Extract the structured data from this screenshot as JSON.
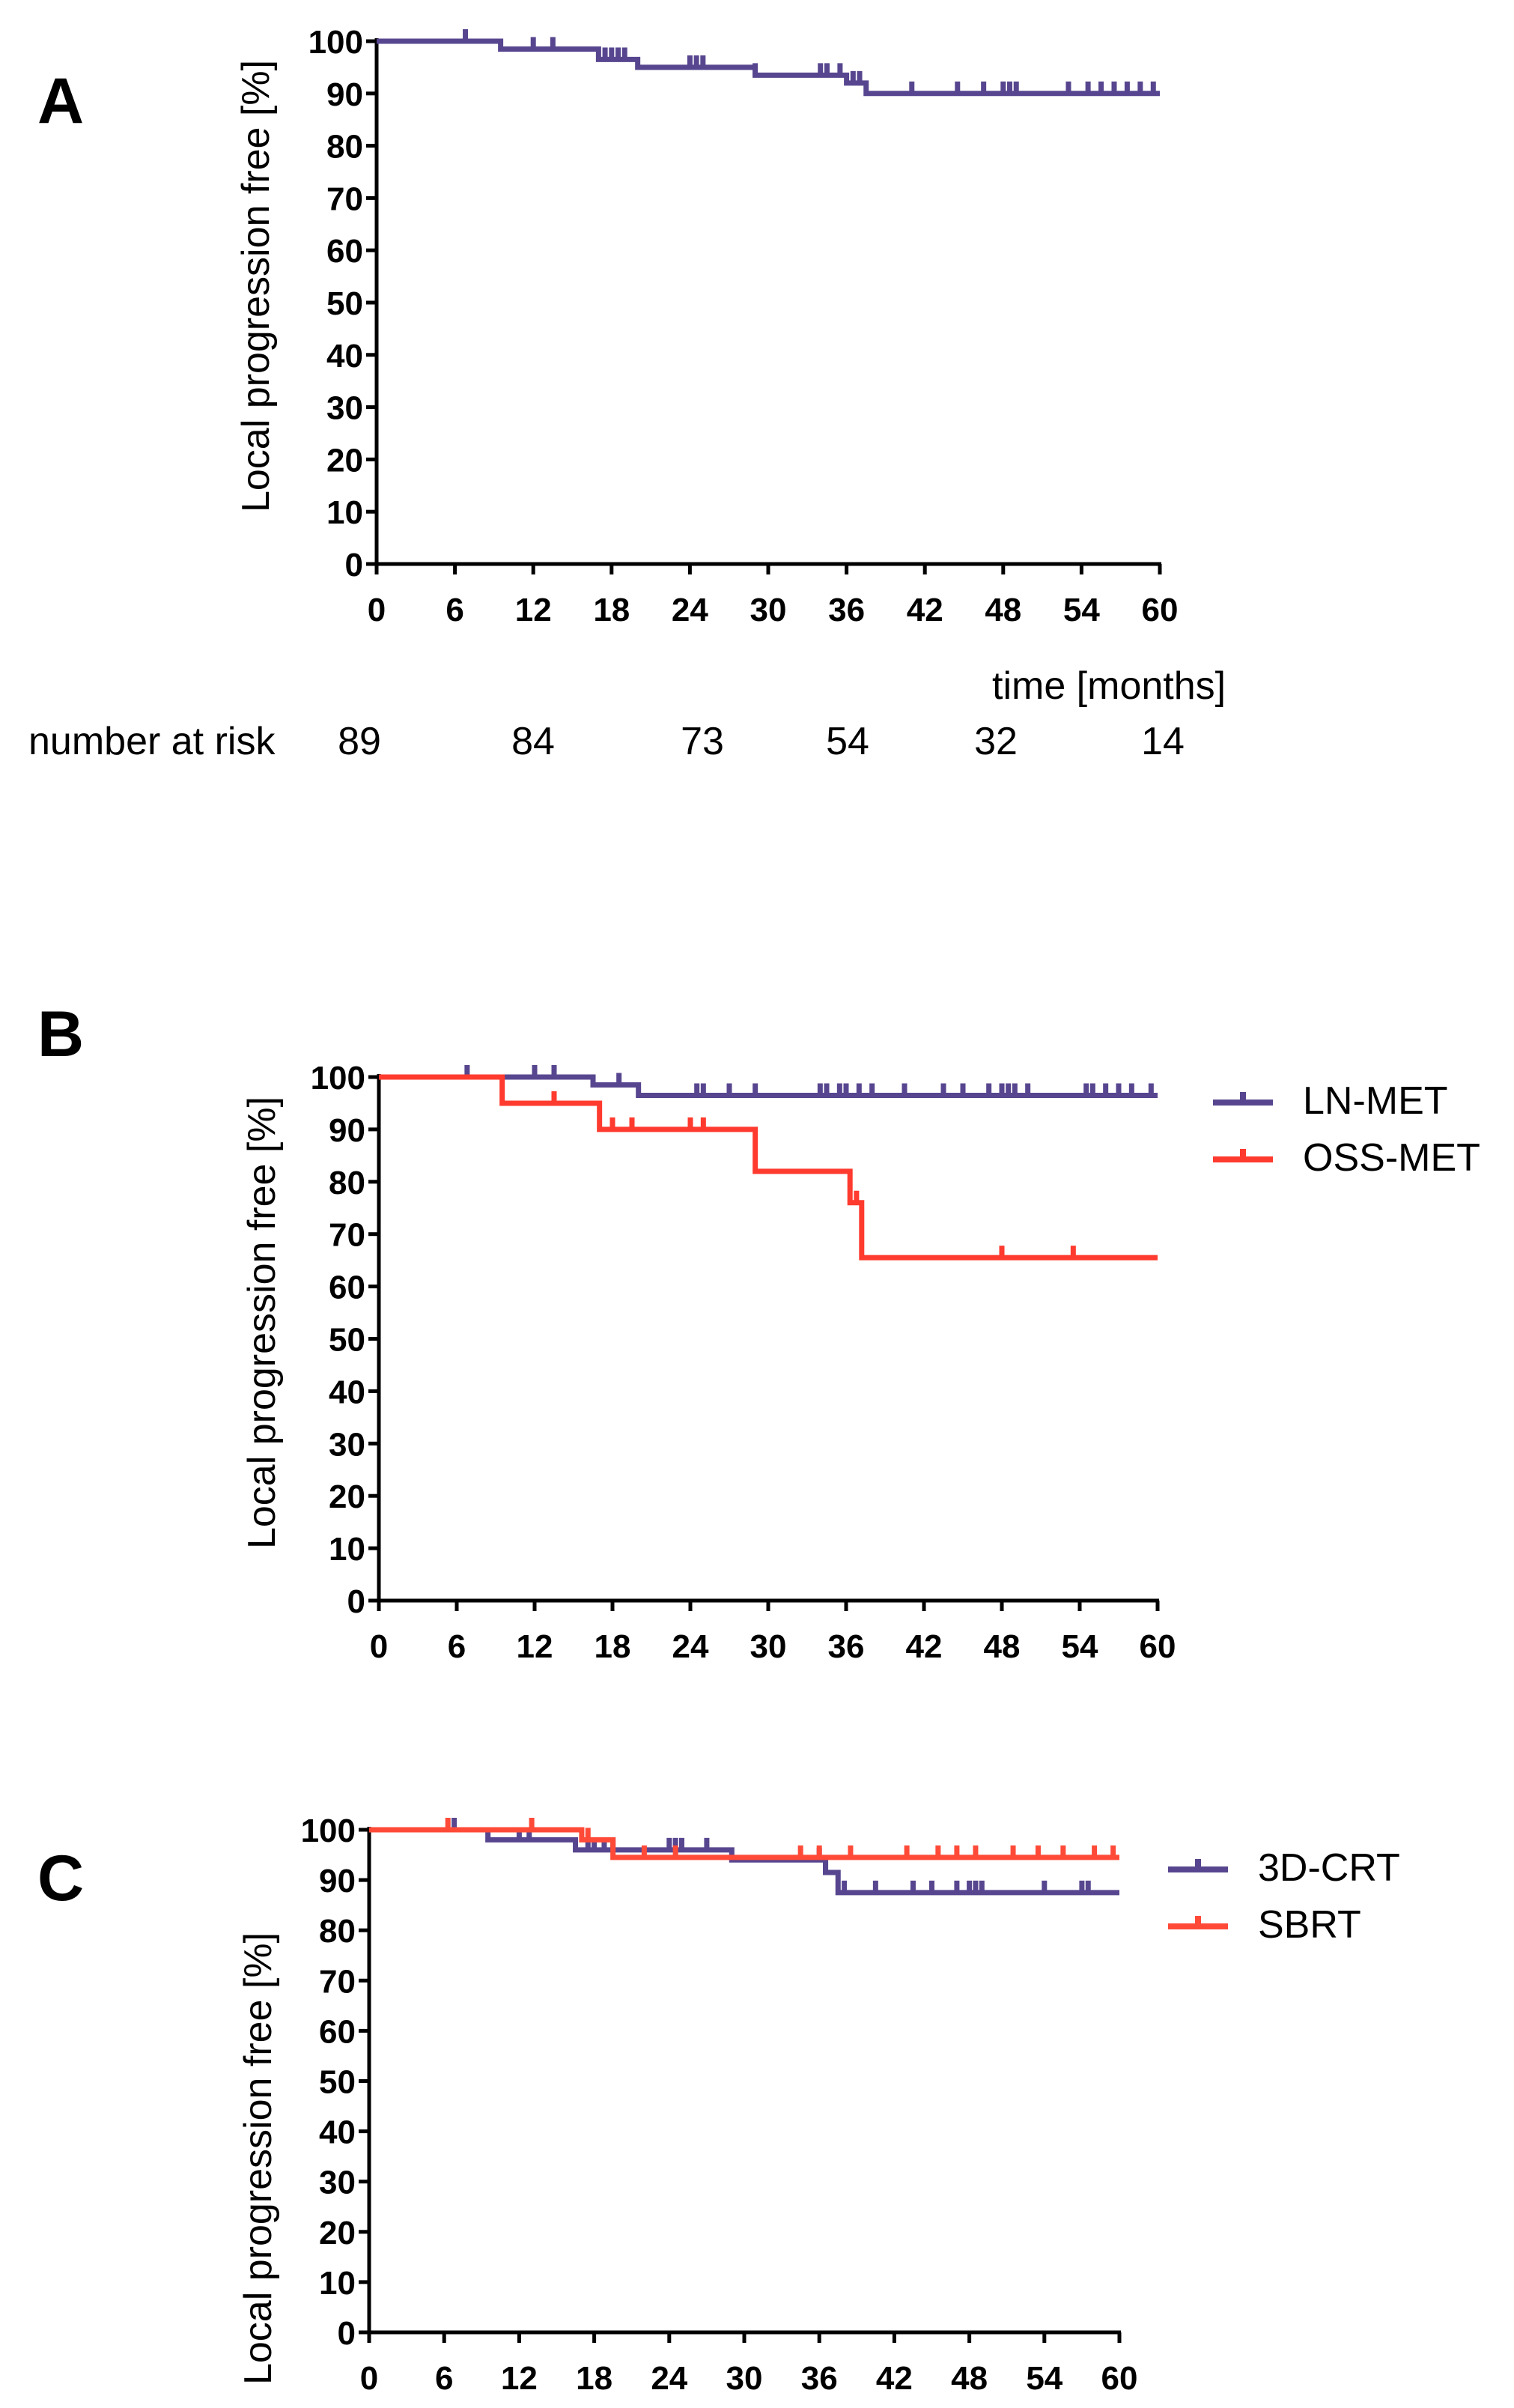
{
  "colors": {
    "purple": "#57468f",
    "red": "#ff3a2e",
    "orange_red": "#ff4a38",
    "axis": "#000000"
  },
  "chart_data": [
    {
      "type": "line",
      "panel": "A",
      "ylabel": "Local progression free [%]",
      "xlabel": "time [months]",
      "xlim": [
        0,
        60
      ],
      "ylim": [
        0,
        100
      ],
      "xticks": [
        0,
        6,
        12,
        18,
        24,
        30,
        36,
        42,
        48,
        54,
        60
      ],
      "yticks": [
        0,
        10,
        20,
        30,
        40,
        50,
        60,
        70,
        80,
        90,
        100
      ],
      "series": [
        {
          "color": "#57468f",
          "steps": [
            [
              0,
              100
            ],
            [
              9.5,
              98.5
            ],
            [
              17,
              96.5
            ],
            [
              20,
              95
            ],
            [
              29,
              93.5
            ],
            [
              36,
              92
            ],
            [
              37.5,
              90
            ],
            [
              60,
              90
            ]
          ],
          "censored": [
            6.8,
            12,
            13.5,
            17.5,
            18,
            18.5,
            19,
            24,
            24.5,
            25,
            29,
            34,
            34.5,
            35.5,
            36.5,
            37,
            41,
            44.5,
            46.5,
            48,
            48.5,
            49,
            53,
            54.5,
            55.5,
            56.5,
            57.5,
            58.5,
            59.5
          ]
        }
      ],
      "number_at_risk_label": "number at risk",
      "number_at_risk": [
        {
          "x": 0,
          "n": "89"
        },
        {
          "x": 12,
          "n": "84"
        },
        {
          "x": 24,
          "n": "73"
        },
        {
          "x": 36,
          "n": "54"
        },
        {
          "x": 48,
          "n": "32"
        },
        {
          "x": 60,
          "n": "14"
        }
      ]
    },
    {
      "type": "line",
      "panel": "B",
      "ylabel": "Local progression free [%]",
      "xlim": [
        0,
        60
      ],
      "ylim": [
        0,
        100
      ],
      "xticks": [
        0,
        6,
        12,
        18,
        24,
        30,
        36,
        42,
        48,
        54,
        60
      ],
      "yticks": [
        0,
        10,
        20,
        30,
        40,
        50,
        60,
        70,
        80,
        90,
        100
      ],
      "series": [
        {
          "name": "LN-MET",
          "color": "#57468f",
          "steps": [
            [
              0,
              100
            ],
            [
              16.5,
              98.5
            ],
            [
              20,
              96.5
            ],
            [
              60,
              96.5
            ]
          ],
          "censored": [
            6.8,
            12,
            13.5,
            18.5,
            24.5,
            25,
            27,
            29,
            34,
            34.5,
            35.5,
            36,
            37,
            38,
            40.5,
            43.5,
            45,
            47,
            48,
            48.5,
            49,
            50,
            54.5,
            55,
            56,
            57,
            58,
            59.5
          ]
        },
        {
          "name": "OSS-MET",
          "color": "#ff3a2e",
          "steps": [
            [
              0,
              100
            ],
            [
              9.5,
              95
            ],
            [
              17,
              90
            ],
            [
              29,
              82
            ],
            [
              36.3,
              76
            ],
            [
              37.2,
              65.5
            ],
            [
              60,
              65.5
            ]
          ],
          "censored": [
            13.5,
            18,
            19.5,
            24,
            25,
            36.8,
            48,
            53.5
          ]
        }
      ]
    },
    {
      "type": "line",
      "panel": "C",
      "ylabel": "Local progression free [%]",
      "xlim": [
        0,
        60
      ],
      "ylim": [
        0,
        100
      ],
      "xticks": [
        0,
        6,
        12,
        18,
        24,
        30,
        36,
        42,
        48,
        54,
        60
      ],
      "yticks": [
        0,
        10,
        20,
        30,
        40,
        50,
        60,
        70,
        80,
        90,
        100
      ],
      "series": [
        {
          "name": "3D-CRT",
          "color": "#57468f",
          "steps": [
            [
              0,
              100
            ],
            [
              9.5,
              98
            ],
            [
              16.5,
              96
            ],
            [
              29,
              94
            ],
            [
              36.5,
              91.5
            ],
            [
              37.5,
              87.5
            ],
            [
              60,
              87.5
            ]
          ],
          "censored": [
            6.8,
            12,
            12.8,
            17.5,
            18,
            18.8,
            19.5,
            24,
            24.5,
            25,
            27,
            36,
            36.5,
            38,
            40.5,
            43.5,
            45,
            47,
            48,
            48.5,
            49,
            54,
            57,
            57.5
          ]
        },
        {
          "name": "SBRT",
          "color": "#ff4a38",
          "steps": [
            [
              0,
              100
            ],
            [
              17,
              98
            ],
            [
              19.5,
              94.5
            ],
            [
              28.5,
              94.5
            ],
            [
              60,
              94.5
            ]
          ],
          "censored": [
            6.3,
            13,
            17.5,
            22,
            24.5,
            34.5,
            36,
            38.5,
            43,
            45.5,
            47,
            48.5,
            51.5,
            53.5,
            55.5,
            58,
            59.5
          ]
        }
      ]
    }
  ],
  "legends": {
    "B": [
      {
        "label": "LN-MET"
      },
      {
        "label": "OSS-MET"
      }
    ],
    "C": [
      {
        "label": "3D-CRT"
      },
      {
        "label": "SBRT"
      }
    ]
  }
}
